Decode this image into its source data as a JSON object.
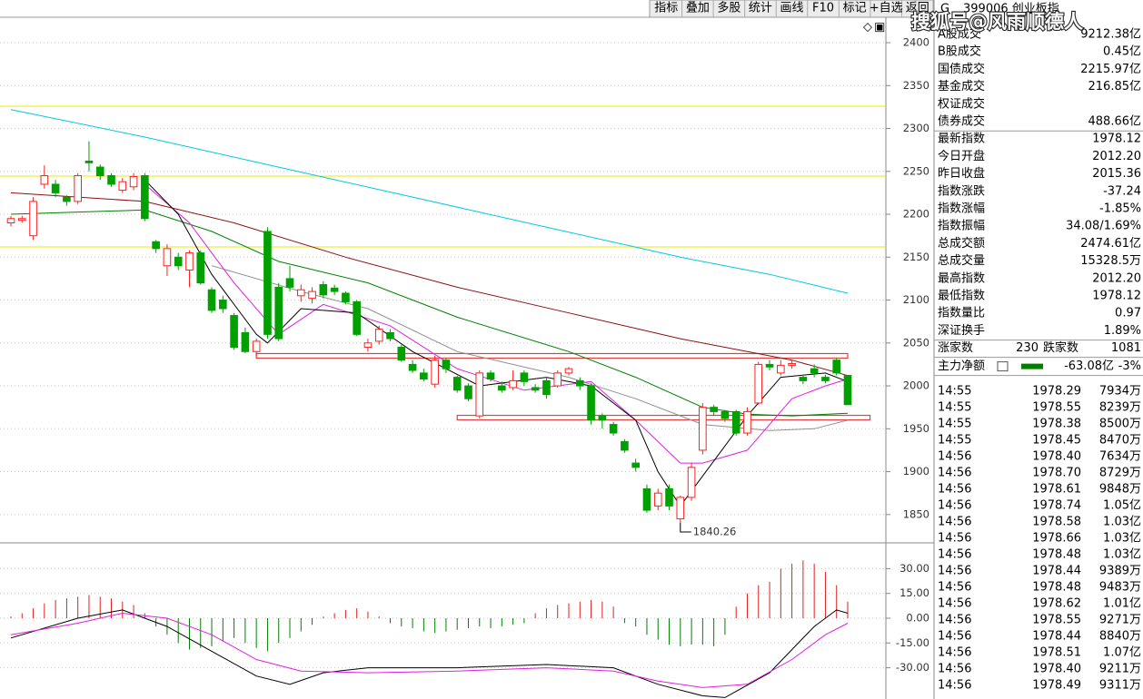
{
  "toolbar": [
    "指标",
    "叠加",
    "多股",
    "统计",
    "画线",
    "F10",
    "标记",
    "+自选",
    "返回"
  ],
  "chart_data": [
    {
      "type": "candlestick",
      "categories": [
        null,
        null,
        null,
        null,
        null,
        null,
        null,
        null,
        null,
        null,
        null,
        null,
        null,
        null,
        null,
        null,
        null,
        null,
        null,
        null,
        null,
        null,
        null,
        null,
        null,
        null,
        null,
        null,
        null,
        null,
        null,
        null,
        null,
        null,
        null,
        null,
        null,
        null,
        null,
        null,
        null,
        null,
        null,
        null,
        null,
        null,
        null,
        null,
        null,
        null,
        null,
        null,
        null,
        null,
        null,
        null,
        null,
        null,
        null,
        null,
        null,
        null,
        null,
        null,
        null,
        null,
        null,
        null,
        null,
        null,
        null,
        null,
        null,
        null,
        null,
        null
      ],
      "open": [
        2190,
        2193,
        2175,
        2235,
        2235,
        2220,
        2215,
        2262,
        2255,
        2245,
        2228,
        2232,
        2245,
        2168,
        2140,
        2150,
        2135,
        2155,
        2112,
        2100,
        2082,
        2062,
        2040,
        2180,
        2115,
        2125,
        2105,
        2102,
        2118,
        2114,
        2108,
        2098,
        2045,
        2052,
        2062,
        2045,
        2025,
        2015,
        2002,
        2030,
        2010,
        2000,
        1965,
        2015,
        2000,
        1998,
        2015,
        1998,
        2006,
        2000,
        2015,
        2006,
        2000,
        1965,
        1955,
        1935,
        1910,
        1880,
        1860,
        1880,
        1845,
        1870,
        1925,
        1975,
        1970,
        1970,
        1945,
        1980,
        2025,
        2015,
        2024,
        2010,
        2020,
        2010,
        2030,
        2012.2
      ],
      "close": [
        2195,
        2195,
        2215,
        2245,
        2225,
        2215,
        2245,
        2260,
        2245,
        2235,
        2238,
        2244,
        2195,
        2160,
        2160,
        2140,
        2155,
        2120,
        2088,
        2090,
        2045,
        2040,
        2052,
        2060,
        2055,
        2115,
        2112,
        2110,
        2106,
        2110,
        2098,
        2060,
        2050,
        2066,
        2055,
        2030,
        2018,
        2008,
        2030,
        2020,
        1995,
        1985,
        2015,
        2008,
        1995,
        2006,
        2005,
        1995,
        1990,
        2015,
        2020,
        2000,
        1960,
        1960,
        1945,
        1925,
        1905,
        1855,
        1875,
        1860,
        1870,
        1905,
        1975,
        1970,
        1962,
        1945,
        1970,
        2025,
        2022,
        2024,
        2026,
        2006,
        2015,
        2006,
        2015,
        1978.12
      ],
      "high": [
        2198,
        2198,
        2220,
        2257,
        2240,
        2222,
        2248,
        2285,
        2258,
        2248,
        2242,
        2248,
        2248,
        2170,
        2165,
        2155,
        2158,
        2158,
        2115,
        2105,
        2085,
        2068,
        2055,
        2185,
        2120,
        2140,
        2118,
        2115,
        2122,
        2118,
        2110,
        2100,
        2055,
        2070,
        2066,
        2048,
        2030,
        2020,
        2035,
        2032,
        2012,
        2003,
        2018,
        2018,
        2005,
        2018,
        2018,
        2002,
        2010,
        2018,
        2022,
        2010,
        2003,
        1968,
        1958,
        1938,
        1915,
        1885,
        1880,
        1885,
        1872,
        1910,
        1980,
        1978,
        1972,
        1972,
        1975,
        2028,
        2030,
        2030,
        2030,
        2013,
        2025,
        2013,
        2033,
        2012.2
      ],
      "low": [
        2186,
        2190,
        2170,
        2230,
        2220,
        2210,
        2212,
        2250,
        2240,
        2232,
        2225,
        2228,
        2192,
        2155,
        2128,
        2135,
        2115,
        2118,
        2085,
        2085,
        2042,
        2038,
        2035,
        2055,
        2052,
        2110,
        2098,
        2096,
        2102,
        2106,
        2095,
        2058,
        2040,
        2048,
        2052,
        2028,
        2015,
        2005,
        1998,
        2015,
        1992,
        1982,
        1962,
        2005,
        1992,
        1995,
        2000,
        1992,
        1985,
        1998,
        2012,
        1995,
        1955,
        1950,
        1942,
        1922,
        1900,
        1852,
        1855,
        1855,
        1840.26,
        1866,
        1920,
        1965,
        1958,
        1942,
        1942,
        1978,
        2018,
        2012,
        2020,
        2002,
        2010,
        2003,
        2012,
        1978.12
      ],
      "up_color": "#ff2020",
      "down_color": "#00a000",
      "lines": [
        {
          "color": "#00c8e0",
          "x": [
            0,
            12,
            24,
            36,
            48,
            60,
            68,
            75
          ],
          "values": [
            2322,
            2290,
            2255,
            2220,
            2185,
            2150,
            2130,
            2108
          ]
        },
        {
          "color": "#8b1010",
          "x": [
            0,
            12,
            20,
            30,
            40,
            50,
            60,
            66,
            70,
            75
          ],
          "values": [
            2225,
            2215,
            2190,
            2150,
            2115,
            2085,
            2055,
            2040,
            2030,
            2012
          ]
        },
        {
          "color": "#008000",
          "x": [
            0,
            12,
            18,
            24,
            32,
            40,
            50,
            56,
            62,
            66,
            70,
            75
          ],
          "values": [
            2200,
            2205,
            2180,
            2145,
            2120,
            2080,
            2040,
            2010,
            1975,
            1967,
            1965,
            1968
          ]
        },
        {
          "color": "#909090",
          "x": [
            18,
            26,
            32,
            40,
            50,
            56,
            62,
            68,
            72,
            75
          ],
          "values": [
            2140,
            2110,
            2090,
            2040,
            2010,
            1985,
            1955,
            1948,
            1950,
            1960
          ]
        },
        {
          "color": "#e020e0",
          "x": [
            12,
            16,
            20,
            24,
            28,
            34,
            40,
            46,
            52,
            56,
            60,
            62,
            66,
            70,
            73,
            75
          ],
          "values": [
            2235,
            2190,
            2120,
            2060,
            2095,
            2070,
            2020,
            1995,
            2005,
            1960,
            1910,
            1910,
            1925,
            1985,
            2000,
            2008
          ]
        },
        {
          "color": "#000000",
          "x": [
            12,
            15,
            18,
            22,
            23,
            26,
            31,
            36,
            42,
            48,
            52,
            56,
            58,
            60,
            62,
            66,
            69,
            73,
            75
          ],
          "values": [
            2240,
            2200,
            2130,
            2060,
            2050,
            2090,
            2085,
            2040,
            2000,
            2010,
            2000,
            1960,
            1900,
            1860,
            1895,
            1965,
            2010,
            2015,
            2005
          ]
        }
      ],
      "hlines": {
        "color": "#e8e800",
        "values": [
          2326,
          2244.5,
          2162
        ]
      },
      "bands": [
        {
          "color": "#e04040",
          "value": 2035,
          "x": [
            22,
            75
          ]
        },
        {
          "color": "#e04040",
          "value": 1963,
          "x": [
            40,
            77
          ]
        }
      ],
      "low_label_index": 60,
      "ylim": [
        1817,
        2428.6
      ],
      "yticks": [
        1850,
        1900,
        1950,
        2000,
        2050,
        2100,
        2150,
        2200,
        2250,
        2300,
        2350,
        2400
      ],
      "grid": true
    },
    {
      "type": "macd",
      "up_color": "#e02020",
      "down_color": "#008000",
      "values": [
        1,
        3,
        6,
        9,
        11,
        12,
        13,
        14,
        13,
        12,
        10,
        8,
        3,
        -5,
        -10,
        -15,
        -19,
        -18,
        -17,
        -14,
        -12,
        -15,
        -18,
        -20,
        -15,
        -12,
        -8,
        -4,
        1,
        3,
        5,
        6,
        4,
        1,
        -3,
        -5,
        -6,
        -8,
        -9,
        -8,
        -7,
        -6,
        -5,
        -6,
        -5,
        -4,
        -3,
        3,
        6,
        8,
        9,
        10,
        11,
        10,
        7,
        -3,
        -5,
        -10,
        -13,
        -16,
        -17,
        -16,
        -16,
        -17,
        -10,
        7,
        15,
        20,
        22,
        30,
        33,
        35,
        33,
        28,
        20,
        10
      ],
      "lines": [
        {
          "color": "#000000",
          "x": [
            0,
            6,
            10,
            14,
            18,
            22,
            25,
            28,
            32,
            40,
            48,
            54,
            58,
            62,
            64,
            68,
            72,
            74,
            75
          ],
          "values": [
            -12,
            0,
            5,
            -5,
            -20,
            -35,
            -40,
            -33,
            -30,
            -30,
            -28,
            -30,
            -40,
            -47,
            -48,
            -33,
            -5,
            5,
            3
          ]
        },
        {
          "color": "#e020e0",
          "x": [
            0,
            6,
            10,
            14,
            18,
            22,
            26,
            32,
            40,
            48,
            54,
            58,
            62,
            66,
            70,
            73,
            75
          ],
          "values": [
            -10,
            -3,
            3,
            0,
            -10,
            -25,
            -32,
            -33,
            -32,
            -30,
            -32,
            -38,
            -42,
            -40,
            -25,
            -10,
            -3
          ]
        }
      ],
      "ylim": [
        -48.9,
        45.6
      ],
      "yticks": [
        {
          "value": 30,
          "label": "30.00"
        },
        {
          "value": 15,
          "label": "15.00"
        },
        {
          "value": 0,
          "label": "0.00"
        },
        {
          "value": -15,
          "label": "-15.00"
        },
        {
          "value": -30,
          "label": "-30.00"
        }
      ],
      "grid": true
    }
  ],
  "panel": {
    "code": "399006 创业板指",
    "watermark": "搜狐号@风雨顺德人",
    "block1": [
      {
        "label": "A股成交",
        "value": "9212.38亿",
        "color": "#d02000"
      },
      {
        "label": "B股成交",
        "value": "0.45亿",
        "color": "#d02000"
      },
      {
        "label": "国债成交",
        "value": "2215.97亿",
        "color": "#d02000"
      },
      {
        "label": "基金成交",
        "value": "216.85亿",
        "color": "#d02000"
      },
      {
        "label": "权证成交"
      },
      {
        "label": "债券成交",
        "value": "488.66亿",
        "color": "#d02000"
      }
    ],
    "block2": [
      {
        "label": "最新指数",
        "value": "1978.12",
        "color": "#008000"
      },
      {
        "label": "今日开盘",
        "value": "2012.20",
        "color": "#008000"
      },
      {
        "label": "昨日收盘",
        "value": "2015.36",
        "color": "#000000"
      },
      {
        "label": "指数涨跌",
        "value": "-37.24",
        "color": "#008000"
      },
      {
        "label": "指数涨幅",
        "value": "-1.85%",
        "color": "#008000"
      },
      {
        "label": "指数振幅",
        "value": "34.08/1.69%",
        "color": "#000000"
      },
      {
        "label": "总成交额",
        "value": "2474.61亿",
        "color": "#d02000"
      },
      {
        "label": "总成交量",
        "value": "15328.5万",
        "color": "#d02000"
      },
      {
        "label": "最高指数",
        "value": "2012.20",
        "color": "#008000"
      },
      {
        "label": "最低指数",
        "value": "1978.12",
        "color": "#008000"
      },
      {
        "label": "指数量比",
        "value": "0.97",
        "color": "#000000"
      },
      {
        "label": "深证换手",
        "value": "1.89%",
        "color": "#000000"
      }
    ],
    "breadth": {
      "up_label": "涨家数",
      "up": 230,
      "down_label": "跌家数",
      "down": 1081
    },
    "main_force": {
      "label": "主力净额",
      "value": "-63.08亿",
      "pct": "-3%"
    },
    "ticks": [
      [
        "14:55",
        "1978.29",
        "7934万"
      ],
      [
        "14:55",
        "1978.55",
        "8239万"
      ],
      [
        "14:55",
        "1978.38",
        "8500万"
      ],
      [
        "14:55",
        "1978.45",
        "8470万"
      ],
      [
        "14:56",
        "1978.40",
        "7634万"
      ],
      [
        "14:56",
        "1978.70",
        "8729万"
      ],
      [
        "14:56",
        "1978.61",
        "9848万"
      ],
      [
        "14:56",
        "1978.74",
        "1.05亿"
      ],
      [
        "14:56",
        "1978.58",
        "1.03亿"
      ],
      [
        "14:56",
        "1978.66",
        "1.03亿"
      ],
      [
        "14:56",
        "1978.48",
        "1.03亿"
      ],
      [
        "14:56",
        "1978.44",
        "9389万"
      ],
      [
        "14:56",
        "1978.48",
        "9483万"
      ],
      [
        "14:56",
        "1978.62",
        "1.01亿"
      ],
      [
        "14:56",
        "1978.55",
        "9271万"
      ],
      [
        "14:56",
        "1978.44",
        "8840万"
      ],
      [
        "14:56",
        "1978.51",
        "1.07亿"
      ],
      [
        "14:56",
        "1978.40",
        "9211万"
      ],
      [
        "14:56",
        "1978.49",
        "9311万"
      ]
    ]
  }
}
